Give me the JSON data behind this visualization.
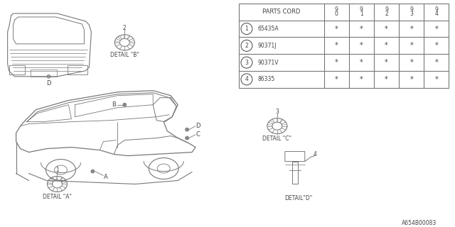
{
  "title": "A654B00083",
  "bg_color": "#ffffff",
  "table_title": "PARTS CORD",
  "col_headers": [
    "9\n0",
    "9\n1",
    "9\n2",
    "9\n3",
    "9\n4"
  ],
  "rows": [
    {
      "num": "1",
      "part": "65435A"
    },
    {
      "num": "2",
      "part": "90371J"
    },
    {
      "num": "3",
      "part": "90371V"
    },
    {
      "num": "4",
      "part": "86335"
    }
  ],
  "detail_labels": [
    "DETAIL \"A\"",
    "DETAIL \"B\"",
    "DETAIL \"C\"",
    "DETAIL\"D\""
  ],
  "text_color": "#444444",
  "line_color": "#777777",
  "table_line_color": "#777777",
  "font_size": 5.5
}
